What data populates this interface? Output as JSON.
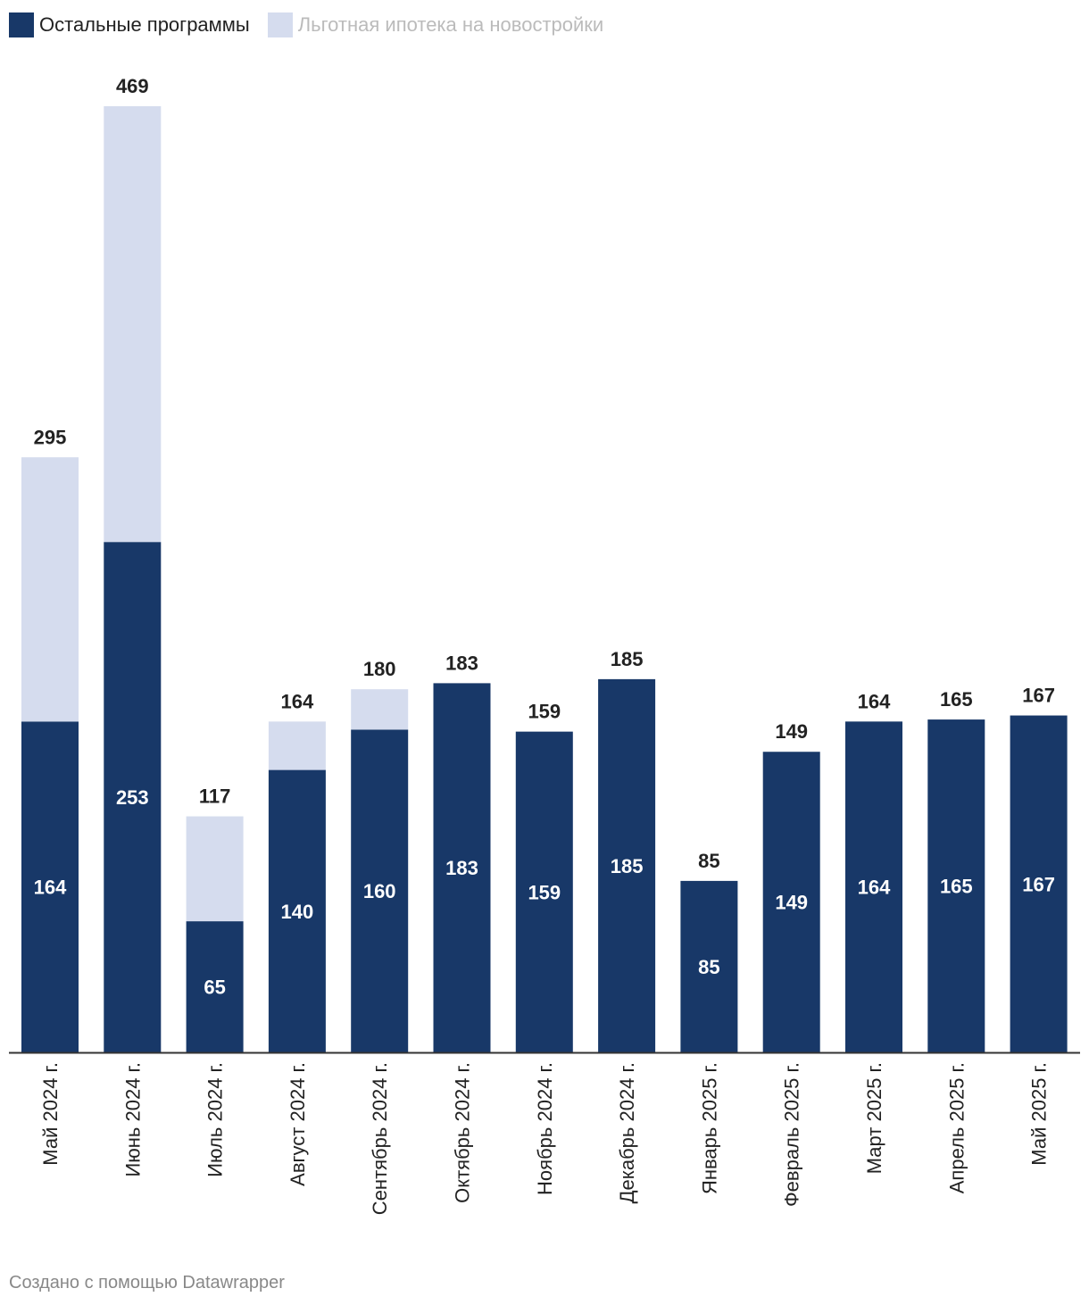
{
  "legend": [
    {
      "label": "Остальные программы",
      "color": "#183868",
      "text_color": "#222222"
    },
    {
      "label": "Льготная ипотека на новостройки",
      "color": "#d5dcee",
      "text_color": "#bbbbbb"
    }
  ],
  "footer": "Создано с помощью Datawrapper",
  "chart_data": {
    "type": "bar",
    "stacked": true,
    "categories": [
      "Май 2024 г.",
      "Июнь 2024 г.",
      "Июль 2024 г.",
      "Август 2024 г.",
      "Сентябрь 2024 г.",
      "Октябрь 2024 г.",
      "Ноябрь 2024 г.",
      "Декабрь 2024 г.",
      "Январь 2025 г.",
      "Февраль 2025 г.",
      "Март 2025 г.",
      "Апрель 2025 г.",
      "Май 2025 г."
    ],
    "series": [
      {
        "name": "Остальные программы",
        "color": "#183868",
        "values": [
          164,
          253,
          65,
          140,
          160,
          183,
          159,
          185,
          85,
          149,
          164,
          165,
          167
        ]
      },
      {
        "name": "Льготная ипотека на новостройки",
        "color": "#d5dcee",
        "values": [
          131,
          216,
          52,
          24,
          20,
          0,
          0,
          0,
          0,
          0,
          0,
          0,
          0
        ]
      }
    ],
    "totals": [
      295,
      469,
      117,
      164,
      180,
      183,
      159,
      185,
      85,
      149,
      164,
      165,
      167
    ],
    "ylim": [
      0,
      469
    ],
    "grid": false,
    "legend_position": "top-left"
  }
}
